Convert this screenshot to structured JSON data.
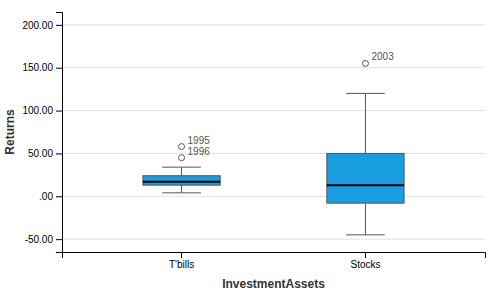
{
  "chart_data": {
    "type": "box",
    "xlabel": "InvestmentAssets",
    "ylabel": "Returns",
    "categories": [
      "T'bills",
      "Stocks"
    ],
    "boxes": [
      {
        "q1": 13.0,
        "median": 17.0,
        "q3": 24.0,
        "whisker_low": 4.0,
        "whisker_high": 34.0,
        "outliers": [
          45.0,
          58.0
        ],
        "outlier_labels": [
          "1996",
          "1995"
        ]
      },
      {
        "q1": -8.0,
        "median": 13.0,
        "q3": 50.0,
        "whisker_low": -45.0,
        "whisker_high": 120.0,
        "outliers": [
          155.0
        ],
        "outlier_labels": [
          "2003"
        ]
      }
    ],
    "color": "#1a9ee2",
    "ylim": [
      -65,
      215
    ],
    "yticks": [
      {
        "value": -50,
        "label": "-50.00"
      },
      {
        "value": 0,
        "label": ".00"
      },
      {
        "value": 50,
        "label": "50.00"
      },
      {
        "value": 100,
        "label": "100.00"
      },
      {
        "value": 150,
        "label": "150.00"
      },
      {
        "value": 200,
        "label": "200.00"
      }
    ],
    "grid": true
  }
}
